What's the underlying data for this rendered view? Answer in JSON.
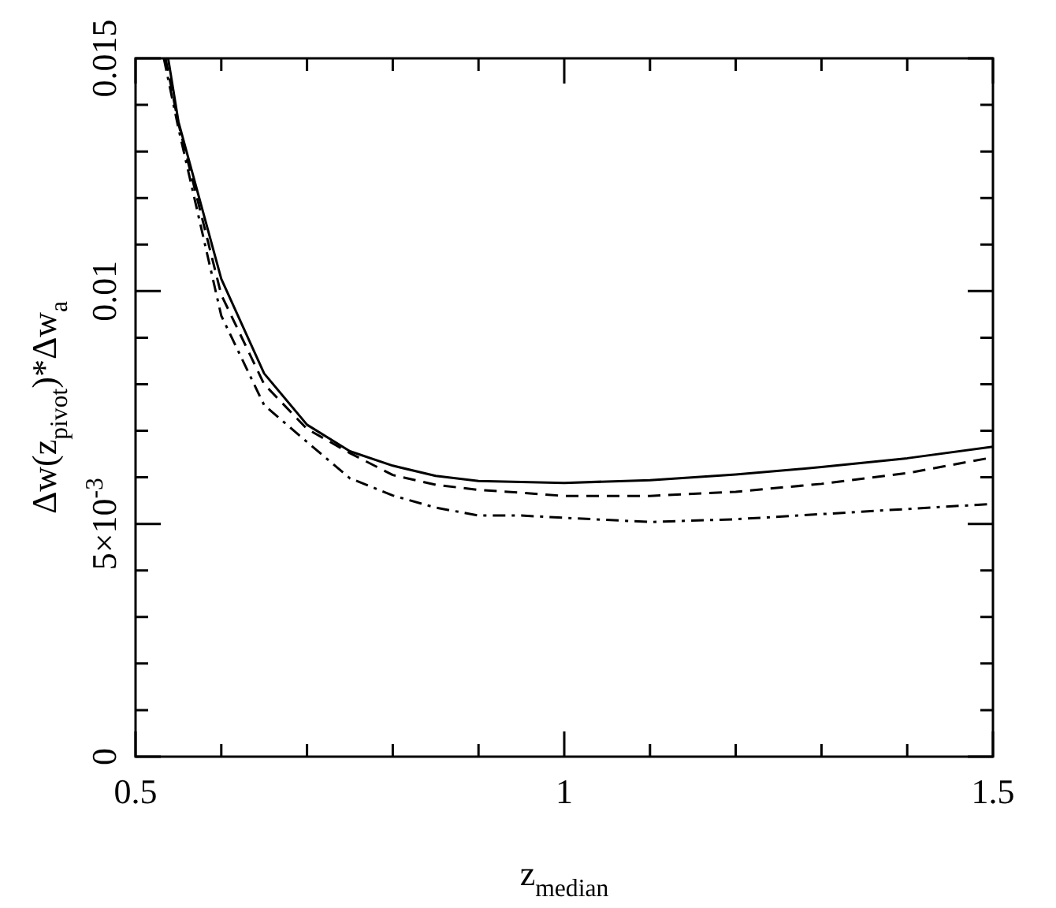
{
  "chart_data": {
    "type": "line",
    "xlabel": "z$_{median}$",
    "ylabel": "Δw(z$_{pivot}$)*Δw$_{a}$",
    "xlim": [
      0.5,
      1.5
    ],
    "ylim": [
      0,
      0.015
    ],
    "xticks": [
      0.5,
      {
        "value": 0.6,
        "label": null
      },
      {
        "value": 0.7,
        "label": null
      },
      {
        "value": 0.8,
        "label": null
      },
      {
        "value": 0.9,
        "label": null
      },
      1,
      {
        "value": 1.1,
        "label": null
      },
      {
        "value": 1.2,
        "label": null
      },
      {
        "value": 1.3,
        "label": null
      },
      {
        "value": 1.4,
        "label": null
      },
      1.5
    ],
    "yticks": [
      0,
      {
        "value": 0.001,
        "label": null
      },
      {
        "value": 0.002,
        "label": null
      },
      {
        "value": 0.003,
        "label": null
      },
      {
        "value": 0.004,
        "label": null
      },
      {
        "value": 0.005,
        "label": "5×10$^{-3}$"
      },
      {
        "value": 0.006,
        "label": null
      },
      {
        "value": 0.007,
        "label": null
      },
      {
        "value": 0.008,
        "label": null
      },
      {
        "value": 0.009,
        "label": null
      },
      0.01,
      {
        "value": 0.011,
        "label": null
      },
      {
        "value": 0.012,
        "label": null
      },
      {
        "value": 0.013,
        "label": null
      },
      {
        "value": 0.014,
        "label": null
      },
      0.015
    ],
    "grid": false,
    "legend": false,
    "marker": "none",
    "series": [
      {
        "color": "#000000",
        "line_style": "solid",
        "x": [
          0.538,
          0.55,
          0.6,
          0.65,
          0.7,
          0.75,
          0.8,
          0.85,
          0.9,
          0.95,
          1.0,
          1.1,
          1.2,
          1.3,
          1.4,
          1.5
        ],
        "values": [
          0.015,
          0.01364,
          0.01026,
          0.00823,
          0.00713,
          0.00656,
          0.00625,
          0.00603,
          0.00592,
          0.0059,
          0.00588,
          0.00594,
          0.00606,
          0.00622,
          0.00641,
          0.00666
        ]
      },
      {
        "color": "#000000",
        "line_style": "dashed",
        "x": [
          0.535,
          0.55,
          0.6,
          0.65,
          0.7,
          0.75,
          0.8,
          0.85,
          0.9,
          0.95,
          1.0,
          1.1,
          1.2,
          1.3,
          1.4,
          1.5
        ],
        "values": [
          0.015,
          0.0136,
          0.00992,
          0.008,
          0.00704,
          0.00652,
          0.00605,
          0.00584,
          0.00573,
          0.00567,
          0.0056,
          0.0056,
          0.00569,
          0.00586,
          0.00609,
          0.00643
        ]
      },
      {
        "color": "#000000",
        "line_style": "dashdot",
        "x": [
          0.533,
          0.55,
          0.6,
          0.65,
          0.7,
          0.75,
          0.8,
          0.85,
          0.9,
          0.95,
          1.0,
          1.1,
          1.2,
          1.3,
          1.4,
          1.5
        ],
        "values": [
          0.015,
          0.0135,
          0.00947,
          0.00755,
          0.00676,
          0.00598,
          0.00561,
          0.00535,
          0.00518,
          0.00518,
          0.00513,
          0.00504,
          0.0051,
          0.00521,
          0.00532,
          0.00543
        ]
      }
    ]
  }
}
